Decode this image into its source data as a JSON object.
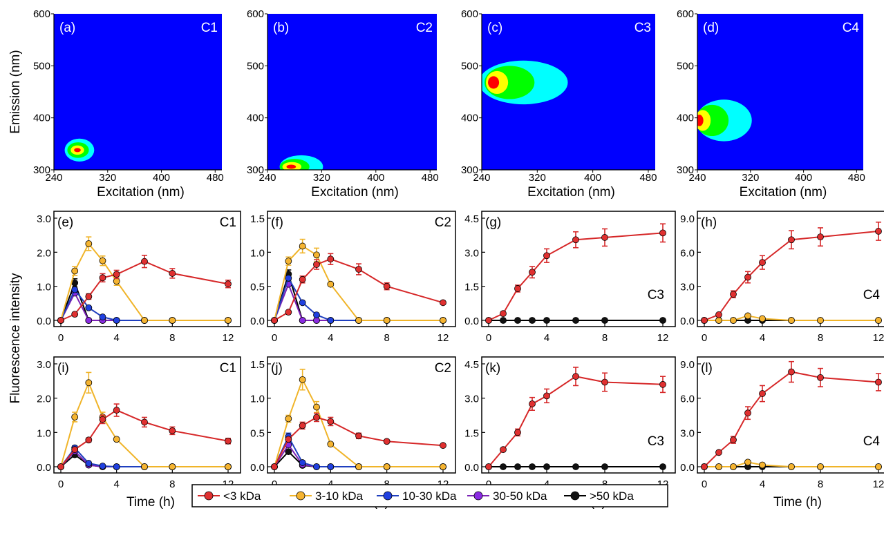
{
  "chart_data": [
    {
      "type": "heatmap",
      "panel_label": "(a)",
      "component": "C1",
      "xlabel": "Excitation (nm)",
      "ylabel": "Emission (nm)",
      "xlim": [
        240,
        490
      ],
      "ylim": [
        300,
        600
      ],
      "xticks": [
        240,
        320,
        400,
        480
      ],
      "yticks": [
        300,
        400,
        500,
        600
      ],
      "background_color": "#0000ff",
      "peak": {
        "ex": 275,
        "em": 338
      },
      "colors": [
        "#00ffff",
        "#00ff00",
        "#ffff00",
        "#ff0000"
      ]
    },
    {
      "type": "heatmap",
      "panel_label": "(b)",
      "component": "C2",
      "xlabel": "Excitation (nm)",
      "ylabel": "",
      "xlim": [
        240,
        490
      ],
      "ylim": [
        300,
        600
      ],
      "xticks": [
        240,
        320,
        400,
        480
      ],
      "yticks": [
        300,
        400,
        500,
        600
      ],
      "background_color": "#0000ff",
      "peak": {
        "ex": 275,
        "em": 306
      },
      "colors": [
        "#00ffff",
        "#00ff00",
        "#ffff00",
        "#ff0000"
      ]
    },
    {
      "type": "heatmap",
      "panel_label": "(c)",
      "component": "C3",
      "xlabel": "Excitation (nm)",
      "ylabel": "",
      "xlim": [
        240,
        490
      ],
      "ylim": [
        300,
        600
      ],
      "xticks": [
        240,
        320,
        400,
        480
      ],
      "yticks": [
        300,
        400,
        500,
        600
      ],
      "background_color": "#0000ff",
      "peak": {
        "ex": 255,
        "em": 468
      },
      "colors": [
        "#00ffff",
        "#00ff00",
        "#ffff00",
        "#ff0000"
      ]
    },
    {
      "type": "heatmap",
      "panel_label": "(d)",
      "component": "C4",
      "xlabel": "Excitation (nm)",
      "ylabel": "",
      "xlim": [
        240,
        490
      ],
      "ylim": [
        300,
        600
      ],
      "xticks": [
        240,
        320,
        400,
        480
      ],
      "yticks": [
        300,
        400,
        500,
        600
      ],
      "background_color": "#0000ff",
      "peak": {
        "ex": 242,
        "em": 395
      },
      "colors": [
        "#00ffff",
        "#00ff00",
        "#ffff00",
        "#ff0000"
      ]
    },
    {
      "type": "line",
      "panel_label": "(e)",
      "component": "C1",
      "ylim": [
        -0.05,
        3.1
      ],
      "yticks": [
        "0.0",
        "1.0",
        "2.0",
        "3.0"
      ],
      "xlim": [
        -0.3,
        12.3
      ],
      "x": [
        0,
        1,
        2,
        3,
        4,
        6,
        8,
        12
      ],
      "series": [
        {
          "name": "<3 kDa",
          "values": [
            0,
            0.18,
            0.7,
            1.25,
            1.35,
            1.73,
            1.38,
            1.07
          ],
          "errors": [
            0,
            0,
            0.08,
            0.12,
            0.12,
            0.18,
            0.14,
            0.11
          ]
        },
        {
          "name": "3-10 kDa",
          "values": [
            0,
            1.45,
            2.25,
            1.75,
            1.15,
            0,
            0,
            0
          ],
          "errors": [
            0,
            0.13,
            0.2,
            0.14,
            0.12,
            0,
            0,
            0
          ]
        },
        {
          "name": "10-30 kDa",
          "values": [
            0,
            0.9,
            0.37,
            0.1,
            0,
            0,
            0,
            0
          ],
          "errors": [
            0,
            0,
            0,
            0,
            0,
            0,
            0,
            0
          ]
        },
        {
          "name": "30-50 kDa",
          "values": [
            0,
            0.8,
            0,
            0,
            0,
            0,
            0,
            0
          ],
          "errors": [
            0,
            0,
            0,
            0,
            0,
            0,
            0,
            0
          ]
        },
        {
          "name": ">50 kDa",
          "values": [
            0,
            1.1,
            0,
            0,
            0,
            0,
            0,
            0
          ],
          "errors": [
            0,
            0.12,
            0,
            0,
            0,
            0,
            0,
            0
          ]
        }
      ]
    },
    {
      "type": "line",
      "panel_label": "(f)",
      "component": "C2",
      "ylim": [
        -0.025,
        1.55
      ],
      "yticks": [
        "0.0",
        "0.5",
        "1.0",
        "1.5"
      ],
      "xlim": [
        -0.3,
        12.3
      ],
      "x": [
        0,
        1,
        2,
        3,
        4,
        6,
        8,
        12
      ],
      "series": [
        {
          "name": "<3 kDa",
          "values": [
            0,
            0.12,
            0.6,
            0.82,
            0.9,
            0.75,
            0.5,
            0.26
          ],
          "errors": [
            0,
            0,
            0.05,
            0.07,
            0.08,
            0.08,
            0.05,
            0
          ]
        },
        {
          "name": "3-10 kDa",
          "values": [
            0,
            0.87,
            1.09,
            0.96,
            0.53,
            0,
            0,
            0
          ],
          "errors": [
            0,
            0.06,
            0.1,
            0.1,
            0,
            0,
            0,
            0
          ]
        },
        {
          "name": "10-30 kDa",
          "values": [
            0,
            0.62,
            0.26,
            0.08,
            0,
            0,
            0,
            0
          ],
          "errors": [
            0,
            0,
            0,
            0,
            0,
            0,
            0,
            0
          ]
        },
        {
          "name": "30-50 kDa",
          "values": [
            0,
            0.53,
            0,
            0,
            0,
            0,
            0,
            0
          ],
          "errors": [
            0,
            0,
            0,
            0,
            0,
            0,
            0,
            0
          ]
        },
        {
          "name": ">50 kDa",
          "values": [
            0,
            0.68,
            0,
            0,
            0,
            0,
            0,
            0
          ],
          "errors": [
            0,
            0.06,
            0,
            0,
            0,
            0,
            0,
            0
          ]
        }
      ]
    },
    {
      "type": "line",
      "panel_label": "(g)",
      "component": "C3",
      "ylim": [
        -0.08,
        4.6
      ],
      "yticks": [
        "0.0",
        "1.5",
        "3.0",
        "4.5"
      ],
      "xlim": [
        -0.3,
        12.3
      ],
      "x": [
        0,
        1,
        2,
        3,
        4,
        6,
        8,
        12
      ],
      "series": [
        {
          "name": "<3 kDa",
          "values": [
            0,
            0.3,
            1.4,
            2.12,
            2.85,
            3.55,
            3.65,
            3.85
          ],
          "errors": [
            0,
            0,
            0.15,
            0.25,
            0.3,
            0.35,
            0.38,
            0.4
          ]
        },
        {
          "name": ">50 kDa",
          "values": [
            0,
            0,
            0,
            0,
            0,
            0,
            0,
            0
          ],
          "errors": [
            0,
            0,
            0,
            0,
            0,
            0,
            0,
            0
          ]
        }
      ]
    },
    {
      "type": "line",
      "panel_label": "(h)",
      "component": "C4",
      "ylim": [
        -0.15,
        9.2
      ],
      "yticks": [
        "0.0",
        "3.0",
        "6.0",
        "9.0"
      ],
      "xlim": [
        -0.3,
        12.3
      ],
      "x": [
        0,
        1,
        2,
        3,
        4,
        6,
        8,
        12
      ],
      "series": [
        {
          "name": "<3 kDa",
          "values": [
            0,
            0.5,
            2.3,
            3.8,
            5.1,
            7.1,
            7.35,
            7.85
          ],
          "errors": [
            0,
            0,
            0.3,
            0.5,
            0.6,
            0.8,
            0.8,
            0.8
          ]
        },
        {
          "name": "3-10 kDa",
          "values": [
            0,
            0,
            0,
            0.4,
            0.15,
            0,
            0,
            0
          ],
          "errors": [
            0,
            0,
            0,
            0,
            0,
            0,
            0,
            0
          ]
        },
        {
          "name": ">50 kDa",
          "values": [
            0,
            0,
            0,
            0,
            0,
            0,
            0,
            0
          ],
          "errors": [
            0,
            0,
            0,
            0,
            0,
            0,
            0,
            0
          ]
        }
      ]
    },
    {
      "type": "line",
      "panel_label": "(i)",
      "component": "C1",
      "ylim": [
        -0.05,
        3.1
      ],
      "yticks": [
        "0.0",
        "1.0",
        "2.0",
        "3.0"
      ],
      "xlim": [
        -0.3,
        12.3
      ],
      "x": [
        0,
        1,
        2,
        3,
        4,
        6,
        8,
        12
      ],
      "series": [
        {
          "name": "<3 kDa",
          "values": [
            0,
            0.5,
            0.78,
            1.38,
            1.65,
            1.3,
            1.05,
            0.75
          ],
          "errors": [
            0,
            0,
            0.06,
            0.12,
            0.18,
            0.14,
            0.11,
            0.08
          ]
        },
        {
          "name": "3-10 kDa",
          "values": [
            0,
            1.45,
            2.45,
            1.45,
            0.8,
            0,
            0,
            0
          ],
          "errors": [
            0,
            0.14,
            0.3,
            0.14,
            0,
            0,
            0,
            0
          ]
        },
        {
          "name": "10-30 kDa",
          "values": [
            0,
            0.55,
            0.1,
            0.02,
            0,
            0,
            0,
            0
          ],
          "errors": [
            0,
            0.06,
            0,
            0,
            0,
            0,
            0,
            0
          ]
        },
        {
          "name": "30-50 kDa",
          "values": [
            0,
            0.45,
            0.05,
            0,
            0,
            0,
            0,
            0
          ],
          "errors": [
            0,
            0,
            0,
            0,
            0,
            0,
            0,
            0
          ]
        },
        {
          "name": ">50 kDa",
          "values": [
            0,
            0.35,
            0.05,
            0,
            0,
            0,
            0,
            0
          ],
          "errors": [
            0,
            0.06,
            0,
            0,
            0,
            0,
            0,
            0
          ]
        }
      ]
    },
    {
      "type": "line",
      "panel_label": "(j)",
      "component": "C2",
      "ylim": [
        -0.025,
        1.55
      ],
      "yticks": [
        "0.0",
        "0.5",
        "1.0",
        "1.5"
      ],
      "xlim": [
        -0.3,
        12.3
      ],
      "x": [
        0,
        1,
        2,
        3,
        4,
        6,
        8,
        12
      ],
      "series": [
        {
          "name": "<3 kDa",
          "values": [
            0,
            0.4,
            0.6,
            0.72,
            0.66,
            0.45,
            0.37,
            0.31
          ],
          "errors": [
            0,
            0,
            0.05,
            0.06,
            0.06,
            0.04,
            0,
            0
          ]
        },
        {
          "name": "3-10 kDa",
          "values": [
            0,
            0.7,
            1.27,
            0.87,
            0.33,
            0,
            0,
            0
          ],
          "errors": [
            0,
            0.05,
            0.15,
            0.08,
            0,
            0,
            0,
            0
          ]
        },
        {
          "name": "10-30 kDa",
          "values": [
            0,
            0.44,
            0.06,
            0,
            0,
            0,
            0,
            0
          ],
          "errors": [
            0,
            0.05,
            0,
            0,
            0,
            0,
            0,
            0
          ]
        },
        {
          "name": "30-50 kDa",
          "values": [
            0,
            0.32,
            0.03,
            0,
            0,
            0,
            0,
            0
          ],
          "errors": [
            0,
            0,
            0,
            0,
            0,
            0,
            0,
            0
          ]
        },
        {
          "name": ">50 kDa",
          "values": [
            0,
            0.22,
            0.02,
            0,
            0,
            0,
            0,
            0
          ],
          "errors": [
            0,
            0,
            0,
            0,
            0,
            0,
            0,
            0
          ]
        }
      ]
    },
    {
      "type": "line",
      "panel_label": "(k)",
      "component": "C3",
      "ylim": [
        -0.08,
        4.6
      ],
      "yticks": [
        "0.0",
        "1.5",
        "3.0",
        "4.5"
      ],
      "xlim": [
        -0.3,
        12.3
      ],
      "x": [
        0,
        1,
        2,
        3,
        4,
        6,
        8,
        12
      ],
      "series": [
        {
          "name": "<3 kDa",
          "values": [
            0,
            0.75,
            1.5,
            2.75,
            3.1,
            3.95,
            3.7,
            3.6
          ],
          "errors": [
            0,
            0,
            0.15,
            0.28,
            0.3,
            0.4,
            0.4,
            0.35
          ]
        },
        {
          "name": ">50 kDa",
          "values": [
            0,
            0,
            0,
            0,
            0,
            0,
            0,
            0
          ],
          "errors": [
            0,
            0,
            0,
            0,
            0,
            0,
            0,
            0
          ]
        }
      ]
    },
    {
      "type": "line",
      "panel_label": "(l)",
      "component": "C4",
      "ylim": [
        -0.15,
        9.2
      ],
      "yticks": [
        "0.0",
        "3.0",
        "6.0",
        "9.0"
      ],
      "xlim": [
        -0.3,
        12.3
      ],
      "x": [
        0,
        1,
        2,
        3,
        4,
        6,
        8,
        12
      ],
      "series": [
        {
          "name": "<3 kDa",
          "values": [
            0,
            1.25,
            2.35,
            4.7,
            6.4,
            8.3,
            7.8,
            7.4
          ],
          "errors": [
            0,
            0,
            0.3,
            0.55,
            0.7,
            0.9,
            0.8,
            0.75
          ]
        },
        {
          "name": "3-10 kDa",
          "values": [
            0,
            0,
            0,
            0.4,
            0.15,
            0,
            0,
            0
          ],
          "errors": [
            0,
            0,
            0,
            0,
            0,
            0,
            0,
            0
          ]
        },
        {
          "name": ">50 kDa",
          "values": [
            0,
            0,
            0,
            0,
            0,
            0,
            0,
            0
          ],
          "errors": [
            0,
            0,
            0,
            0,
            0,
            0,
            0,
            0
          ]
        }
      ]
    }
  ],
  "series_styles": [
    {
      "name": "<3 kDa",
      "color": "#d62728",
      "fill": "#e03030"
    },
    {
      "name": "3-10 kDa",
      "color": "#f0b429",
      "fill": "#f5b431"
    },
    {
      "name": "10-30 kDa",
      "color": "#1f3fbf",
      "fill": "#2040e0"
    },
    {
      "name": "30-50 kDa",
      "color": "#7b22b5",
      "fill": "#8a2be2"
    },
    {
      "name": ">50 kDa",
      "color": "#000000",
      "fill": "#111111"
    }
  ],
  "xticks": [
    0,
    4,
    8,
    12
  ],
  "line_xlabel": "Time (h)",
  "line_ylabel": "Fluorescence intensity",
  "legend": {
    "entries": [
      "<3 kDa",
      "3-10 kDa",
      "10-30 kDa",
      "30-50 kDa",
      ">50 kDa"
    ],
    "placement": "bottom-center"
  }
}
